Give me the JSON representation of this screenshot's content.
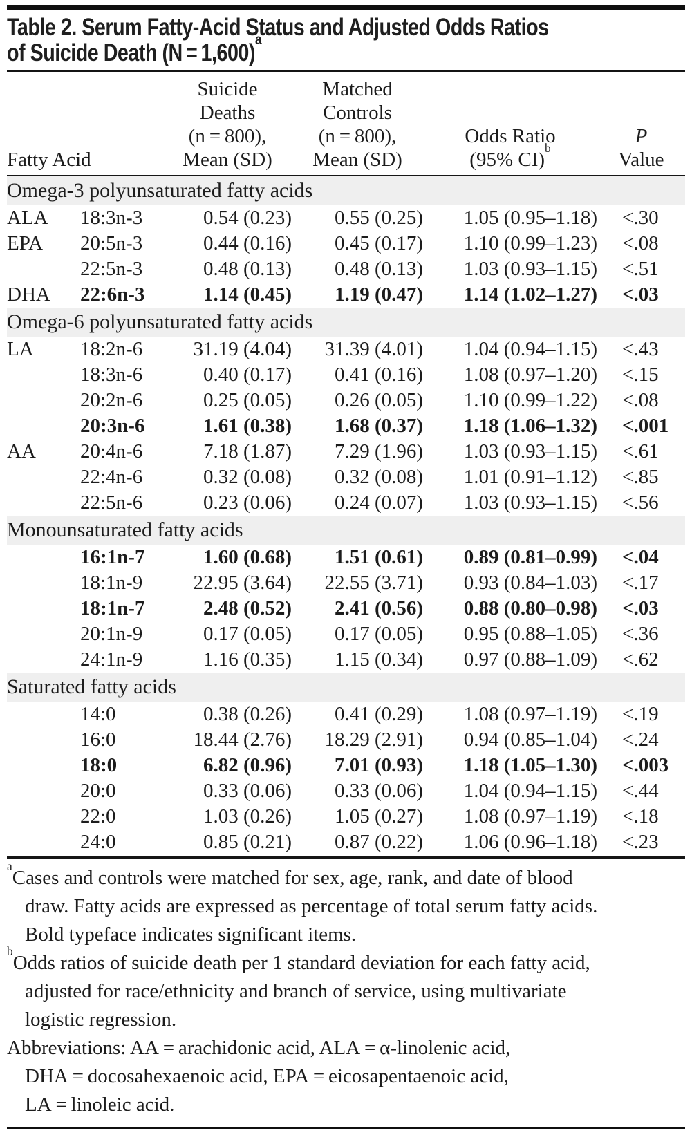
{
  "title": {
    "lines": [
      "Table 2. Serum Fatty-Acid Status and Adjusted Odds Ratios",
      "of Suicide Death (N = 1,600)"
    ],
    "sup": "a"
  },
  "table": {
    "columns": {
      "fatty_acid": "Fatty Acid",
      "suicide_lines": [
        "Suicide",
        "Deaths",
        "(n = 800),",
        "Mean (SD)"
      ],
      "controls_lines": [
        "Matched",
        "Controls",
        "(n = 800),",
        "Mean (SD)"
      ],
      "odds_ratio_lines": [
        "Odds Ratio",
        "(95% CI)"
      ],
      "odds_ratio_sup": "b",
      "p_line1": "P",
      "p_line2": "Value"
    },
    "sections": [
      {
        "header": "Omega-3 polyunsaturated fatty acids",
        "rows": [
          {
            "abbr": "ALA",
            "notation": "18:3n-3",
            "suicide": "0.54 (0.23)",
            "controls": "0.55 (0.25)",
            "or": "1.05 (0.95–1.18)",
            "p": "<.30",
            "bold": false
          },
          {
            "abbr": "EPA",
            "notation": "20:5n-3",
            "suicide": "0.44 (0.16)",
            "controls": "0.45 (0.17)",
            "or": "1.10 (0.99–1.23)",
            "p": "<.08",
            "bold": false
          },
          {
            "abbr": "",
            "notation": "22:5n-3",
            "suicide": "0.48 (0.13)",
            "controls": "0.48 (0.13)",
            "or": "1.03 (0.93–1.15)",
            "p": "<.51",
            "bold": false
          },
          {
            "abbr": "DHA",
            "notation": "22:6n-3",
            "suicide": "1.14 (0.45)",
            "controls": "1.19 (0.47)",
            "or": "1.14 (1.02–1.27)",
            "p": "<.03",
            "bold": true
          }
        ]
      },
      {
        "header": "Omega-6 polyunsaturated fatty acids",
        "rows": [
          {
            "abbr": "LA",
            "notation": "18:2n-6",
            "suicide": "31.19 (4.04)",
            "controls": "31.39 (4.01)",
            "or": "1.04 (0.94–1.15)",
            "p": "<.43",
            "bold": false
          },
          {
            "abbr": "",
            "notation": "18:3n-6",
            "suicide": "0.40 (0.17)",
            "controls": "0.41 (0.16)",
            "or": "1.08 (0.97–1.20)",
            "p": "<.15",
            "bold": false
          },
          {
            "abbr": "",
            "notation": "20:2n-6",
            "suicide": "0.25 (0.05)",
            "controls": "0.26 (0.05)",
            "or": "1.10 (0.99–1.22)",
            "p": "<.08",
            "bold": false
          },
          {
            "abbr": "",
            "notation": "20:3n-6",
            "suicide": "1.61 (0.38)",
            "controls": "1.68 (0.37)",
            "or": "1.18 (1.06–1.32)",
            "p": "<.001",
            "bold": true
          },
          {
            "abbr": "AA",
            "notation": "20:4n-6",
            "suicide": "7.18 (1.87)",
            "controls": "7.29 (1.96)",
            "or": "1.03 (0.93–1.15)",
            "p": "<.61",
            "bold": false
          },
          {
            "abbr": "",
            "notation": "22:4n-6",
            "suicide": "0.32 (0.08)",
            "controls": "0.32 (0.08)",
            "or": "1.01 (0.91–1.12)",
            "p": "<.85",
            "bold": false
          },
          {
            "abbr": "",
            "notation": "22:5n-6",
            "suicide": "0.23 (0.06)",
            "controls": "0.24 (0.07)",
            "or": "1.03 (0.93–1.15)",
            "p": "<.56",
            "bold": false
          }
        ]
      },
      {
        "header": "Monounsaturated fatty acids",
        "rows": [
          {
            "abbr": "",
            "notation": "16:1n-7",
            "suicide": "1.60 (0.68)",
            "controls": "1.51 (0.61)",
            "or": "0.89 (0.81–0.99)",
            "p": "<.04",
            "bold": true
          },
          {
            "abbr": "",
            "notation": "18:1n-9",
            "suicide": "22.95 (3.64)",
            "controls": "22.55 (3.71)",
            "or": "0.93 (0.84–1.03)",
            "p": "<.17",
            "bold": false
          },
          {
            "abbr": "",
            "notation": "18:1n-7",
            "suicide": "2.48 (0.52)",
            "controls": "2.41 (0.56)",
            "or": "0.88 (0.80–0.98)",
            "p": "<.03",
            "bold": true
          },
          {
            "abbr": "",
            "notation": "20:1n-9",
            "suicide": "0.17 (0.05)",
            "controls": "0.17 (0.05)",
            "or": "0.95 (0.88–1.05)",
            "p": "<.36",
            "bold": false
          },
          {
            "abbr": "",
            "notation": "24:1n-9",
            "suicide": "1.16 (0.35)",
            "controls": "1.15 (0.34)",
            "or": "0.97 (0.88–1.09)",
            "p": "<.62",
            "bold": false
          }
        ]
      },
      {
        "header": "Saturated fatty acids",
        "rows": [
          {
            "abbr": "",
            "notation": "14:0",
            "suicide": "0.38 (0.26)",
            "controls": "0.41 (0.29)",
            "or": "1.08 (0.97–1.19)",
            "p": "<.19",
            "bold": false
          },
          {
            "abbr": "",
            "notation": "16:0",
            "suicide": "18.44 (2.76)",
            "controls": "18.29 (2.91)",
            "or": "0.94 (0.85–1.04)",
            "p": "<.24",
            "bold": false
          },
          {
            "abbr": "",
            "notation": "18:0",
            "suicide": "6.82 (0.96)",
            "controls": "7.01 (0.93)",
            "or": "1.18 (1.05–1.30)",
            "p": "<.003",
            "bold": true
          },
          {
            "abbr": "",
            "notation": "20:0",
            "suicide": "0.33 (0.06)",
            "controls": "0.33 (0.06)",
            "or": "1.04 (0.94–1.15)",
            "p": "<.44",
            "bold": false
          },
          {
            "abbr": "",
            "notation": "22:0",
            "suicide": "1.03 (0.26)",
            "controls": "1.05 (0.27)",
            "or": "1.08 (0.97–1.19)",
            "p": "<.18",
            "bold": false
          },
          {
            "abbr": "",
            "notation": "24:0",
            "suicide": "0.85 (0.21)",
            "controls": "0.87 (0.22)",
            "or": "1.06 (0.96–1.18)",
            "p": "<.23",
            "bold": false
          }
        ]
      }
    ]
  },
  "footnotes": [
    {
      "marker": "a",
      "lines": [
        "Cases and controls were matched for sex, age, rank, and date of blood",
        "draw. Fatty acids are expressed as percentage of total serum fatty acids.",
        "Bold typeface indicates significant items."
      ]
    },
    {
      "marker": "b",
      "lines": [
        "Odds ratios of suicide death per 1 standard deviation for each fatty acid,",
        "adjusted for race/ethnicity and branch of service, using multivariate",
        "logistic regression."
      ]
    },
    {
      "marker": "",
      "lines": [
        "Abbreviations: AA = arachidonic acid, ALA = α-linolenic acid,",
        "DHA = docosahexaenoic acid, EPA = eicosapentaenoic acid,",
        "LA = linoleic acid."
      ]
    }
  ],
  "colors": {
    "section_band": "#efefef",
    "rule": "#0f0f0f",
    "text": "#1c1c1c"
  }
}
